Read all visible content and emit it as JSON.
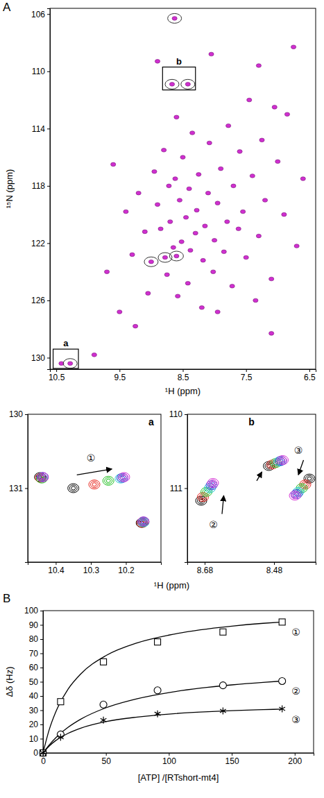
{
  "chart_data": [
    {
      "type": "scatter",
      "label": "A",
      "x_label": "¹H (ppm)",
      "y_label": "¹⁵N (ppm)",
      "xlim": [
        10.6,
        6.4
      ],
      "ylim": [
        105.6,
        130.8
      ],
      "xticks": [
        10.5,
        9.5,
        8.5,
        7.5,
        6.5
      ],
      "yticks": [
        106,
        110,
        114,
        118,
        122,
        126,
        130
      ],
      "series": [
        {
          "color": "#cf2fcf",
          "marker": "ellipse",
          "x": [
            6.6,
            6.7,
            6.85,
            6.9,
            7.0,
            7.05,
            7.1,
            7.2,
            7.25,
            7.3,
            7.35,
            7.4,
            7.45,
            7.5,
            7.55,
            7.6,
            7.62,
            7.7,
            7.72,
            7.78,
            7.8,
            7.85,
            7.9,
            7.95,
            8.0,
            8.02,
            8.08,
            8.1,
            8.15,
            8.18,
            8.2,
            8.25,
            8.28,
            8.3,
            8.35,
            8.38,
            8.4,
            8.42,
            8.45,
            8.5,
            8.52,
            8.55,
            8.58,
            8.6,
            8.62,
            8.65,
            8.7,
            8.72,
            8.75,
            8.8,
            8.85,
            8.9,
            8.95,
            9.0,
            9.05,
            9.1,
            9.2,
            9.3,
            9.4,
            9.5,
            9.6,
            9.7,
            8.63,
            8.67,
            8.42,
            8.05,
            7.3,
            6.75,
            8.78,
            8.6,
            9.25,
            10.42,
            10.28,
            9.9,
            8.9,
            7.95,
            7.1
          ],
          "y": [
            117.5,
            122.2,
            113.0,
            120.0,
            116.3,
            112.5,
            124.5,
            119.0,
            114.8,
            121.5,
            126.0,
            117.3,
            112.0,
            123.0,
            119.8,
            115.6,
            121.0,
            118.0,
            125.0,
            113.8,
            120.5,
            122.6,
            116.8,
            119.2,
            121.8,
            124.0,
            115.0,
            118.5,
            120.8,
            123.2,
            126.5,
            117.2,
            119.7,
            121.3,
            114.3,
            122.5,
            118.2,
            124.8,
            120.2,
            116.0,
            121.9,
            119.0,
            125.7,
            113.2,
            117.5,
            122.3,
            120.5,
            118.0,
            124.2,
            115.5,
            121.0,
            119.3,
            117.0,
            123.3,
            125.5,
            121.2,
            118.5,
            122.8,
            119.8,
            126.8,
            116.5,
            124.0,
            106.3,
            110.9,
            110.9,
            108.8,
            109.6,
            108.3,
            123.0,
            122.9,
            127.8,
            130.4,
            130.4,
            129.8,
            109.3,
            126.8,
            128.3
          ]
        }
      ],
      "highlights": {
        "x": [
          8.63,
          10.28,
          8.67,
          8.42,
          9.0,
          8.78,
          8.6
        ],
        "y": [
          106.3,
          130.4,
          110.9,
          110.9,
          123.3,
          123.0,
          122.9
        ]
      },
      "annotations": [
        {
          "text": "a",
          "x": [
            10.55,
            10.15
          ],
          "y": [
            129.4,
            130.75
          ]
        },
        {
          "text": "b",
          "x": [
            8.82,
            8.3
          ],
          "y": [
            109.7,
            111.3
          ]
        }
      ]
    },
    {
      "type": "scatter",
      "label": "a",
      "x_label": "¹H (ppm)",
      "xlim": [
        10.48,
        10.1
      ],
      "ylim": [
        130,
        132
      ],
      "xticks": [
        10.4,
        10.3,
        10.2
      ],
      "yticks": [
        130,
        131
      ],
      "series": [
        {
          "color": "#000000",
          "marker": "contour",
          "x": [
            10.445,
            10.35,
            10.155
          ],
          "y": [
            130.85,
            131.0,
            131.47
          ]
        },
        {
          "color": "#e8221b",
          "marker": "contour",
          "x": [
            10.443,
            10.29,
            10.153
          ],
          "y": [
            130.86,
            130.95,
            131.47
          ]
        },
        {
          "color": "#1fbf1f",
          "marker": "contour",
          "x": [
            10.44,
            10.25,
            10.15
          ],
          "y": [
            130.87,
            130.9,
            131.46
          ]
        },
        {
          "color": "#27c9d6",
          "marker": "contour",
          "x": [
            10.438,
            10.215,
            10.15
          ],
          "y": [
            130.85,
            130.87,
            131.46
          ]
        },
        {
          "color": "#3d3dd9",
          "marker": "contour",
          "x": [
            10.437,
            10.21,
            10.15
          ],
          "y": [
            130.85,
            130.86,
            131.45
          ]
        },
        {
          "color": "#d42fd4",
          "marker": "contour",
          "x": [
            10.437,
            10.205,
            10.15
          ],
          "y": [
            130.85,
            130.85,
            131.45
          ]
        }
      ],
      "annotations": [
        {
          "text": "①",
          "x": 10.3,
          "y": 130.6,
          "arrow": [
            10.34,
            130.82,
            10.24,
            130.74
          ]
        }
      ]
    },
    {
      "type": "scatter",
      "label": "b",
      "xlim": [
        8.73,
        8.36
      ],
      "ylim": [
        110,
        112
      ],
      "xticks": [
        8.68,
        8.48
      ],
      "yticks": [
        110,
        111
      ],
      "series": [
        {
          "color": "#000000",
          "marker": "contour",
          "x": [
            8.69,
            8.495,
            8.378
          ],
          "y": [
            111.17,
            110.7,
            110.87
          ]
        },
        {
          "color": "#e8221b",
          "marker": "contour",
          "x": [
            8.685,
            8.485,
            8.39
          ],
          "y": [
            111.12,
            110.68,
            110.95
          ]
        },
        {
          "color": "#1fbf1f",
          "marker": "contour",
          "x": [
            8.675,
            8.475,
            8.4
          ],
          "y": [
            111.05,
            110.66,
            111.0
          ]
        },
        {
          "color": "#27c9d6",
          "marker": "contour",
          "x": [
            8.665,
            8.465,
            8.41
          ],
          "y": [
            111.0,
            110.64,
            111.05
          ]
        },
        {
          "color": "#3d3dd9",
          "marker": "contour",
          "x": [
            8.66,
            8.46,
            8.415
          ],
          "y": [
            110.96,
            110.63,
            111.08
          ]
        },
        {
          "color": "#d42fd4",
          "marker": "contour",
          "x": [
            8.656,
            8.455,
            8.42
          ],
          "y": [
            110.93,
            110.62,
            111.1
          ]
        }
      ],
      "annotations": [
        {
          "text": "②",
          "x": 8.655,
          "y": 111.5,
          "arrow": [
            8.63,
            111.35,
            8.625,
            111.1
          ]
        },
        {
          "arrow": [
            8.53,
            110.9,
            8.515,
            110.78
          ]
        },
        {
          "text": "③",
          "x": 8.41,
          "y": 110.5,
          "arrow": [
            8.395,
            110.62,
            8.41,
            110.82
          ]
        }
      ]
    },
    {
      "type": "line",
      "label": "B",
      "x_label": "[ATP] /[RTshort-mt4]",
      "y_label": "Δδ (Hz)",
      "xlim": [
        0,
        215
      ],
      "ylim": [
        0,
        100
      ],
      "xticks": [
        0,
        50,
        100,
        150,
        200
      ],
      "yticks": [
        0,
        10,
        20,
        30,
        40,
        50,
        60,
        70,
        80,
        90,
        100
      ],
      "series": [
        {
          "name": "①",
          "color": "#000000",
          "marker": "square",
          "x": [
            0,
            14,
            48,
            91,
            143,
            190
          ],
          "values": [
            0,
            36,
            64,
            78,
            85,
            92
          ],
          "fit": {
            "x": [
              0,
              5,
              10,
              20,
              30,
              50,
              75,
              100,
              125,
              150,
              175,
              190
            ],
            "values": [
              0,
              16.5,
              28.5,
              44.9,
              55.5,
              68.4,
              77.4,
              82.8,
              86.5,
              89.1,
              91.1,
              92.0
            ]
          }
        },
        {
          "name": "②",
          "color": "#000000",
          "marker": "circle",
          "x": [
            0,
            14,
            48,
            91,
            143,
            190
          ],
          "values": [
            0,
            13,
            34,
            44,
            47.5,
            50.5
          ],
          "fit": {
            "x": [
              0,
              5,
              10,
              20,
              30,
              50,
              75,
              100,
              125,
              150,
              175,
              190
            ],
            "values": [
              0,
              5.7,
              10.5,
              18.0,
              23.7,
              31.7,
              38.1,
              42.4,
              45.5,
              47.8,
              49.6,
              50.5
            ]
          }
        },
        {
          "name": "③",
          "color": "#000000",
          "marker": "asterisk",
          "x": [
            0,
            14,
            48,
            91,
            143,
            190
          ],
          "values": [
            0,
            11,
            23,
            27.5,
            29.5,
            31
          ],
          "fit": {
            "x": [
              0,
              5,
              10,
              20,
              30,
              50,
              75,
              100,
              125,
              150,
              175,
              190
            ],
            "values": [
              0,
              4.9,
              8.6,
              13.8,
              17.4,
              22.0,
              25.2,
              27.3,
              28.7,
              29.7,
              30.4,
              30.8
            ]
          }
        }
      ]
    }
  ]
}
